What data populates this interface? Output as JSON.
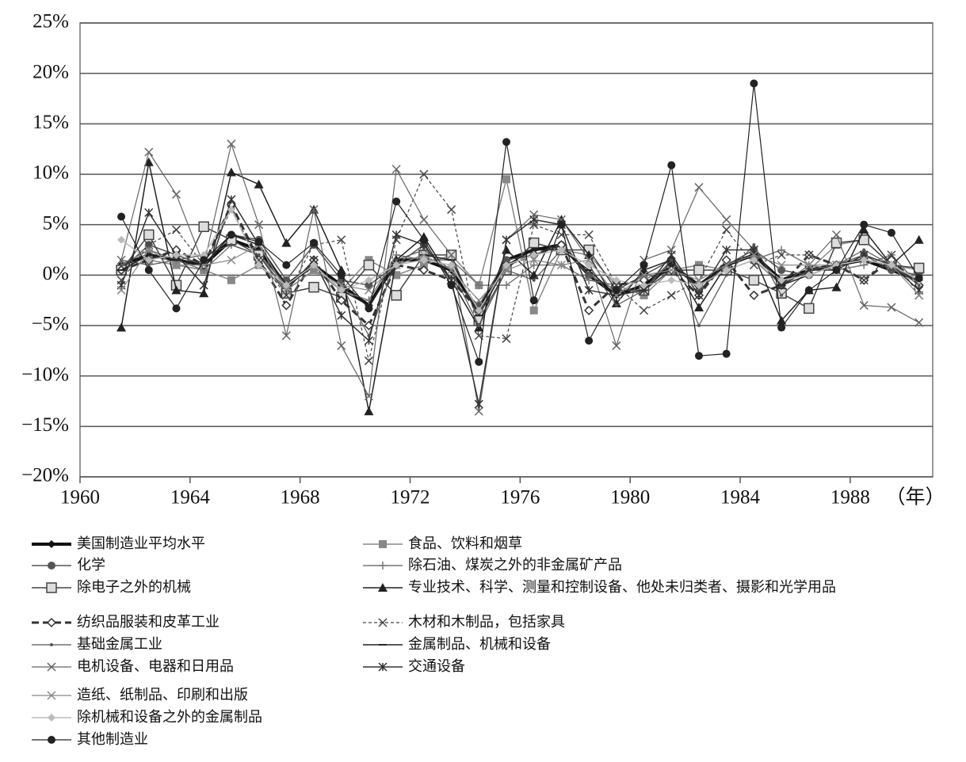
{
  "chart_data": {
    "type": "line",
    "x": [
      1961.5,
      1962.5,
      1963.5,
      1964.5,
      1965.5,
      1966.5,
      1967.5,
      1968.5,
      1969.5,
      1970.5,
      1971.5,
      1972.5,
      1973.5,
      1974.5,
      1975.5,
      1976.5,
      1977.5,
      1978.5,
      1979.5,
      1980.5,
      1981.5,
      1982.5,
      1983.5,
      1984.5,
      1985.5,
      1986.5,
      1987.5,
      1988.5,
      1989.5,
      1990.5
    ],
    "xlim": [
      1960,
      1991
    ],
    "xticks": [
      1960,
      1964,
      1968,
      1972,
      1976,
      1980,
      1984,
      1988
    ],
    "x_label": "（年）",
    "ylim": [
      -20,
      25
    ],
    "yticks": [
      {
        "value": -20,
        "label": "−20%"
      },
      {
        "value": -15,
        "label": "−15%"
      },
      {
        "value": -10,
        "label": "−10%"
      },
      {
        "value": -5,
        "label": "−5%"
      },
      {
        "value": 0,
        "label": "0%"
      },
      {
        "value": 5,
        "label": "5%"
      },
      {
        "value": 10,
        "label": "10%"
      },
      {
        "value": 15,
        "label": "15%"
      },
      {
        "value": 20,
        "label": "20%"
      },
      {
        "value": 25,
        "label": "25%"
      }
    ],
    "grid": true,
    "series": [
      {
        "name": "美国制造业平均水平",
        "color": "#111111",
        "width": 4,
        "marker": "diamond",
        "dash": "solid",
        "values": [
          1,
          2,
          1.5,
          1,
          3.5,
          2.5,
          -1,
          1,
          -1,
          -3,
          1.5,
          1.5,
          0.5,
          -3.5,
          1.5,
          2.5,
          3,
          0,
          -2,
          -1,
          1,
          -1,
          1,
          2,
          -0.5,
          0.5,
          1,
          1.5,
          0.5,
          -0.5
        ]
      },
      {
        "name": "食品、饮料和烟草",
        "color": "#888888",
        "width": 1.5,
        "marker": "square",
        "dash": "solid",
        "values": [
          0.5,
          1.5,
          1,
          0.5,
          -0.5,
          1,
          -1.5,
          0.5,
          -1.5,
          1.5,
          0,
          1,
          2,
          -1,
          9.5,
          -3.5,
          2.5,
          2,
          -1,
          -2,
          0.5,
          1,
          0.5,
          1.5,
          -1,
          0.5,
          3,
          3.5,
          1,
          0.5
        ]
      },
      {
        "name": "化学",
        "color": "#555555",
        "width": 1.5,
        "marker": "circle",
        "dash": "solid",
        "values": [
          0.5,
          3,
          2,
          1,
          4,
          3.5,
          -0.5,
          3,
          -0.5,
          -1,
          1,
          3,
          -0.5,
          -3,
          1.5,
          2,
          3,
          0,
          -1.5,
          0,
          1.5,
          -1.5,
          1,
          2.5,
          0.5,
          0,
          1,
          2,
          0.5,
          0
        ]
      },
      {
        "name": "除石油、煤炭之外的非金属矿产品",
        "color": "#777777",
        "width": 1.5,
        "marker": "plus",
        "dash": "solid",
        "values": [
          1,
          2.5,
          1.5,
          0.5,
          3,
          2,
          -1,
          1,
          -1.5,
          -2.5,
          2,
          1.5,
          1.5,
          -1,
          -1,
          1,
          1,
          -0.5,
          -1,
          -0.5,
          1,
          -1,
          0.5,
          1.5,
          2.5,
          1,
          0.5,
          1,
          2,
          -1
        ]
      },
      {
        "name": "除电子之外的机械",
        "color": "#444444",
        "width": 1.5,
        "marker": "open-square",
        "dash": "solid",
        "values": [
          0.5,
          4,
          -1,
          4.8,
          3.5,
          2,
          -1.8,
          -1.2,
          -2.2,
          1,
          -2,
          2,
          2,
          -4.5,
          0.5,
          3.2,
          2.5,
          2.5,
          -1.5,
          -1.5,
          0.5,
          0.5,
          0.5,
          -0.5,
          -1.8,
          -3.3,
          3.2,
          3.5,
          1,
          0.7
        ]
      },
      {
        "name": "专业技术、科学、测量和控制设备、他处未归类者、摄影和光学用品",
        "color": "#222222",
        "width": 1.5,
        "marker": "triangle",
        "dash": "solid",
        "values": [
          -5.2,
          11.2,
          -1.5,
          -1.8,
          10.2,
          9,
          3.2,
          6.5,
          0.5,
          -13.5,
          1.5,
          3.8,
          -0.5,
          -5.2,
          2.5,
          0,
          5.5,
          2,
          -2.8,
          0.5,
          1.5,
          -3.2,
          1,
          2,
          -4.5,
          -1.5,
          -1.2,
          4.5,
          1,
          3.5
        ]
      },
      {
        "name": "纺织品服装和皮革工业",
        "color": "#333333",
        "width": 3,
        "marker": "open-diamond",
        "dash": "dash",
        "values": [
          0.5,
          1.5,
          2.5,
          1,
          7,
          1.5,
          -3,
          1.5,
          -2.5,
          -5,
          1,
          0.5,
          -0.5,
          -3.5,
          1,
          2,
          3,
          -3.5,
          -1,
          -0.5,
          0.5,
          -2,
          1.5,
          -2,
          -1,
          2,
          1,
          -0.5,
          1.5,
          -1
        ]
      },
      {
        "name": "木材和木制品，包括家具",
        "color": "#444444",
        "width": 1.2,
        "marker": "x",
        "dash": "dot",
        "values": [
          -0.5,
          3,
          4.5,
          1,
          6.5,
          1.5,
          -2,
          3,
          3.5,
          -8.5,
          3.5,
          10,
          6.5,
          -6,
          -6.3,
          5,
          4,
          4,
          -1,
          -3.5,
          -2,
          -0.5,
          4.5,
          1,
          2,
          2,
          1,
          -0.5,
          2,
          -2
        ]
      },
      {
        "name": "基础金属工业",
        "color": "#555555",
        "width": 1.2,
        "marker": "dot",
        "dash": "solid",
        "values": [
          1.5,
          1,
          1.5,
          2,
          3,
          2,
          -1.5,
          0.5,
          -1,
          -6,
          1.5,
          2.5,
          0.5,
          -5,
          0.5,
          -0.5,
          2.5,
          1,
          -3,
          -1.5,
          1.5,
          -5,
          0,
          3,
          -2,
          0.5,
          1,
          2.5,
          1,
          -1
        ]
      },
      {
        "name": "金属制品、机械和设备",
        "color": "#222222",
        "width": 1.5,
        "marker": "dash",
        "dash": "solid",
        "values": [
          0.5,
          2,
          1.5,
          1,
          4,
          3,
          -1,
          1,
          -1.5,
          -3,
          1,
          2,
          1.5,
          -4,
          1,
          2.5,
          2.5,
          0.5,
          -2,
          -1.5,
          1,
          -1,
          1,
          2,
          -1,
          0,
          1,
          1.5,
          1,
          -0.5
        ]
      },
      {
        "name": "电机设备、电器和日用品",
        "color": "#666666",
        "width": 1.2,
        "marker": "x",
        "dash": "solid",
        "values": [
          1.5,
          12.2,
          8,
          1,
          13,
          5,
          -6,
          6.5,
          -7,
          -12,
          10.5,
          5.5,
          2,
          -13.5,
          3.5,
          6,
          5.5,
          1.5,
          -7,
          1.5,
          2.5,
          8.7,
          5.5,
          2.5,
          -1,
          1,
          4,
          -3,
          -3.2,
          -4.7
        ]
      },
      {
        "name": "交通设备",
        "color": "#333333",
        "width": 1.5,
        "marker": "asterisk",
        "dash": "solid",
        "values": [
          -1,
          6.2,
          2,
          -1,
          7.5,
          3,
          -1.5,
          1.5,
          -4,
          -6.5,
          4,
          3,
          -0.5,
          -12.8,
          3.5,
          5.5,
          5,
          -1.5,
          -2,
          -1.5,
          2,
          -2,
          2.5,
          2.5,
          -1,
          0.5,
          0.5,
          2,
          1,
          -1.5
        ]
      },
      {
        "name": "造纸、纸制品、印刷和出版",
        "color": "#888888",
        "width": 1.2,
        "marker": "x",
        "dash": "solid",
        "values": [
          -1.5,
          2.5,
          1,
          1,
          1.5,
          3,
          -1.5,
          0.5,
          -1,
          -1.5,
          1,
          2,
          0.5,
          -2.5,
          0.5,
          1.5,
          1,
          1.5,
          -2,
          0,
          0.5,
          -0.5,
          1,
          2,
          1,
          1,
          1,
          1.5,
          1,
          -2
        ]
      },
      {
        "name": "除机械和设备之外的金属制品",
        "color": "#bbbbbb",
        "width": 1.5,
        "marker": "diamond",
        "dash": "solid",
        "values": [
          3.5,
          1.5,
          2,
          2,
          6.5,
          1,
          -1,
          1,
          -1.5,
          -0.5,
          1,
          1.5,
          1,
          -3.5,
          1,
          2,
          2.5,
          1,
          -0.5,
          -1,
          -0.5,
          -1,
          0.5,
          1.5,
          -0.5,
          0,
          1,
          1.5,
          1,
          -0.5
        ]
      },
      {
        "name": "其他制造业",
        "color": "#222222",
        "width": 1.2,
        "marker": "circle",
        "dash": "solid",
        "values": [
          5.8,
          0.5,
          -3.3,
          1.5,
          4,
          3.3,
          1,
          3.2,
          0,
          -3.3,
          7.3,
          3.5,
          -1,
          -8.6,
          13.2,
          -2.5,
          5,
          -6.5,
          -1.5,
          1,
          10.9,
          -8,
          -7.8,
          19,
          -5.2,
          -1.5,
          0.5,
          5,
          4.2,
          -0.3
        ]
      }
    ]
  }
}
